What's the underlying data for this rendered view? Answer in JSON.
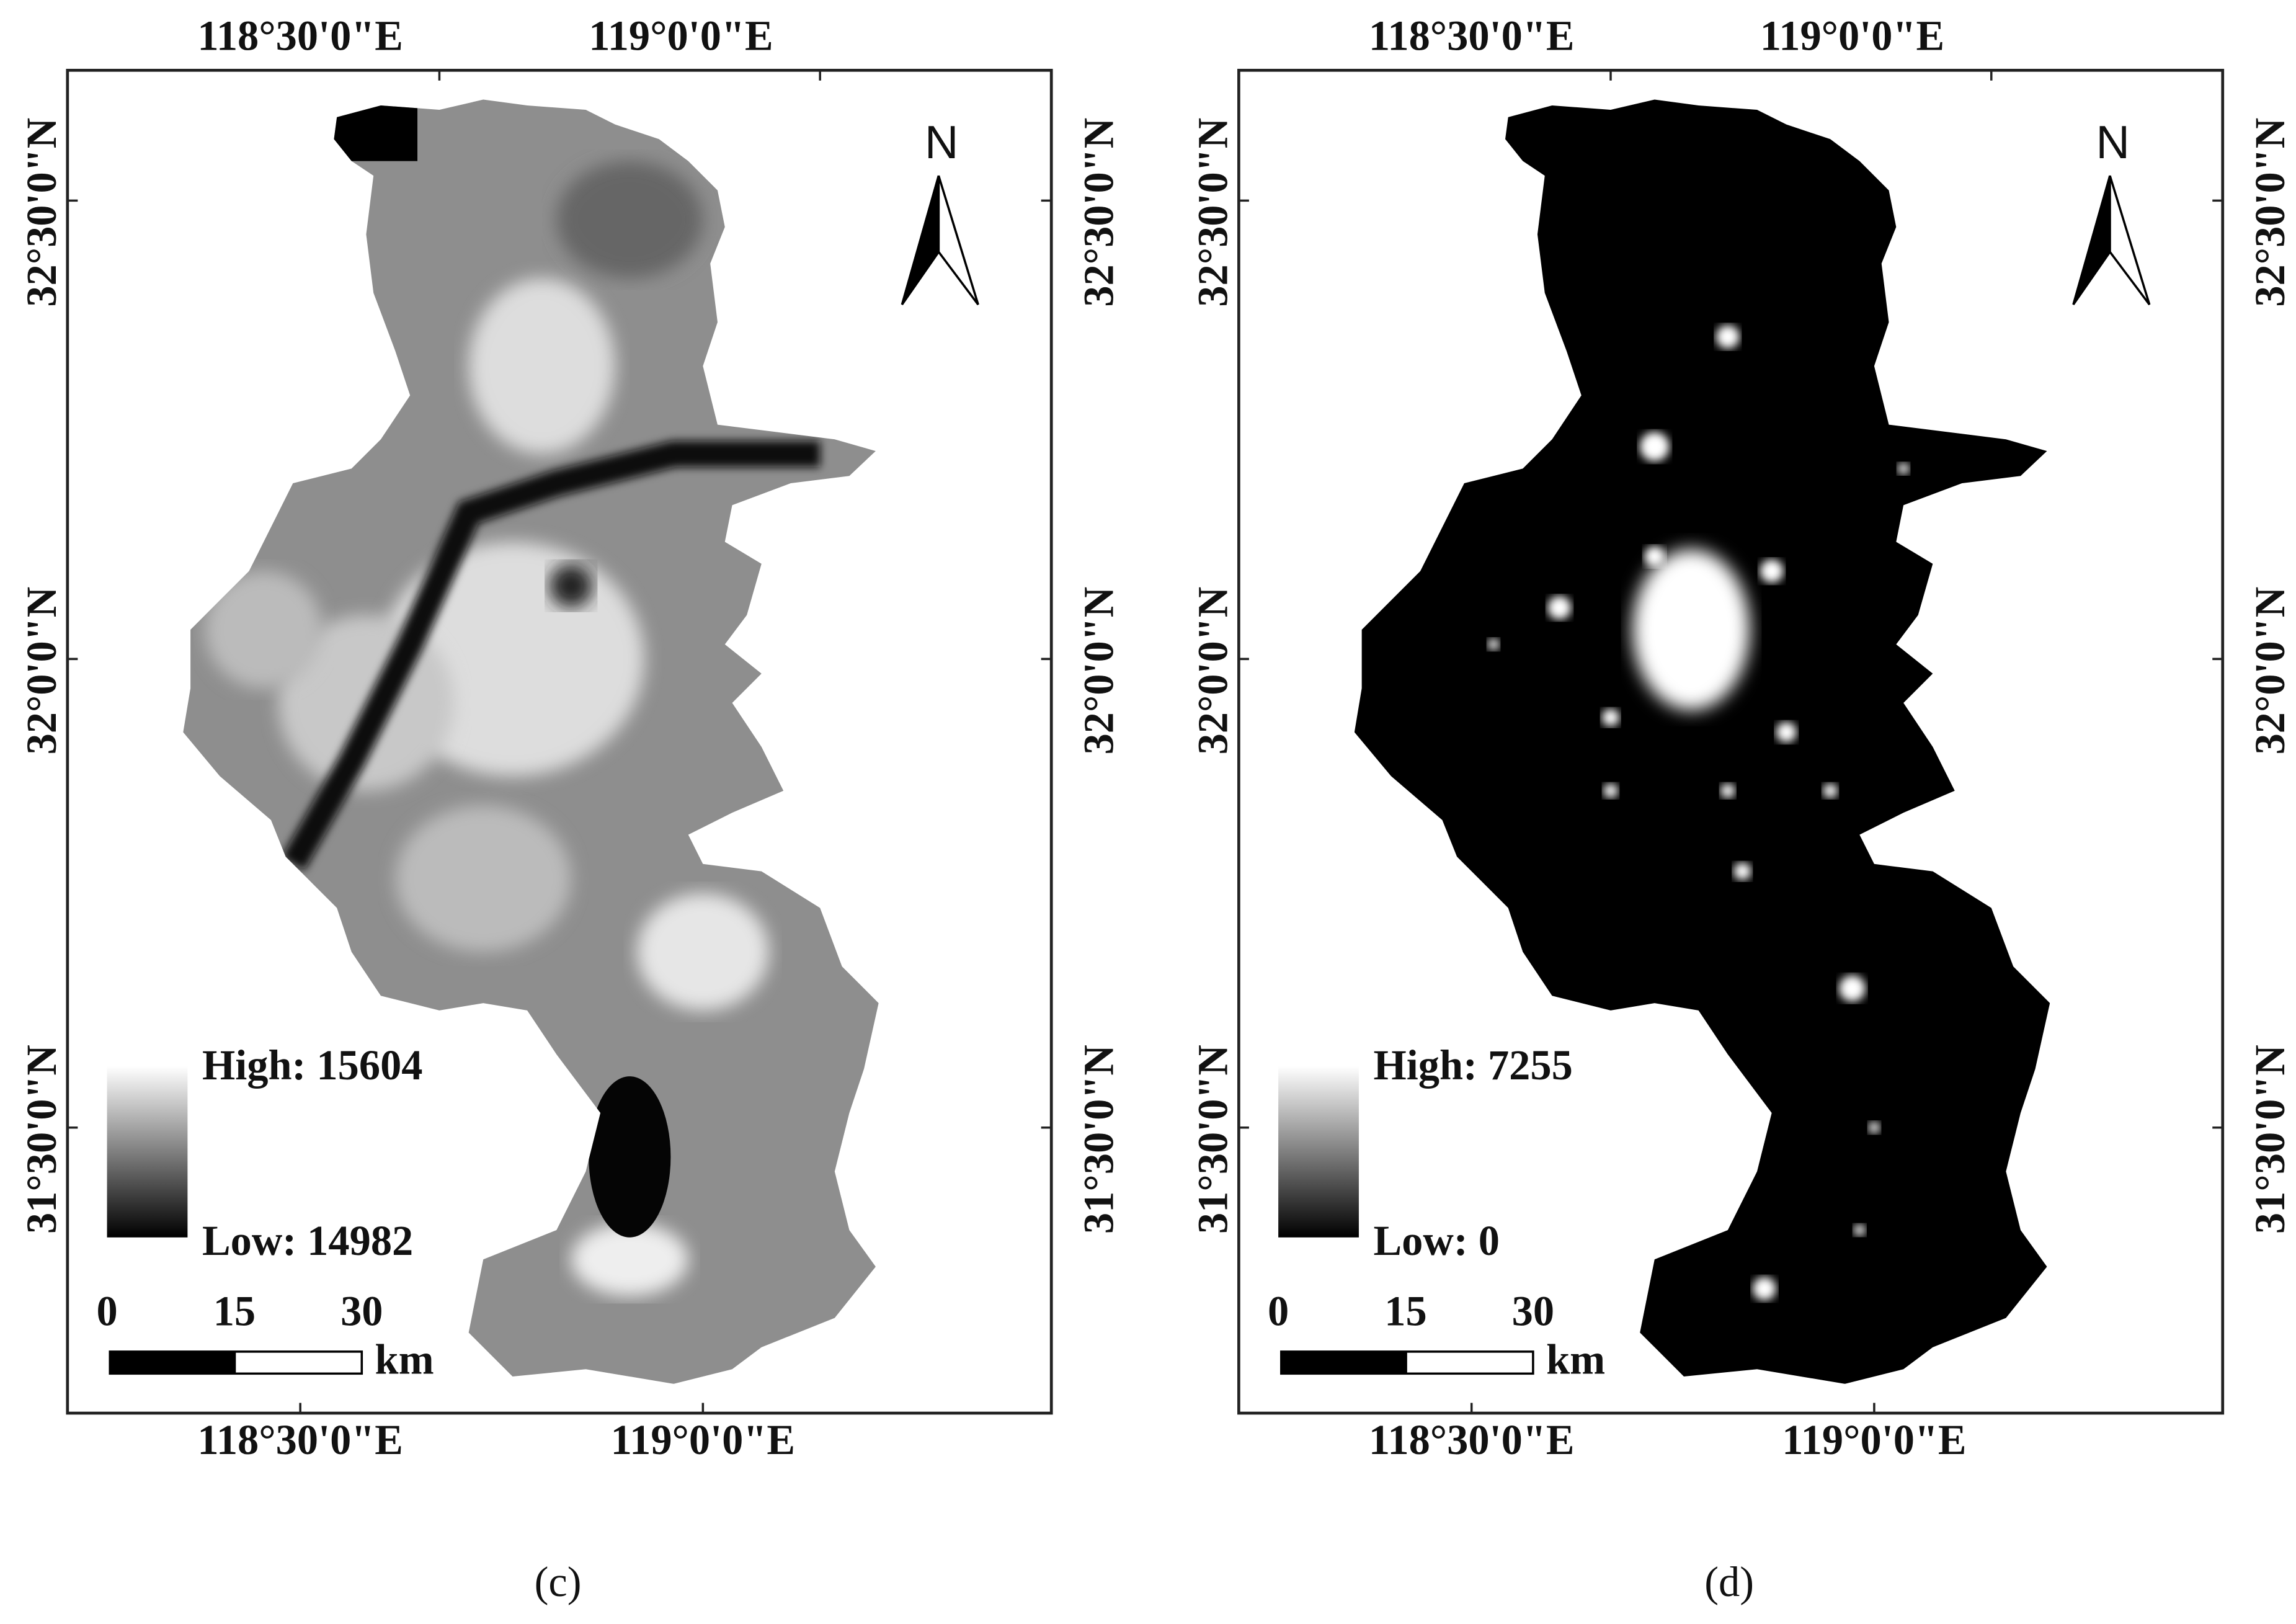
{
  "panels": [
    {
      "caption": "(c)",
      "x_labels_top": [
        "118°30'0\"E",
        "119°0'0\"E"
      ],
      "x_labels_bottom": [
        "118°30'0\"E",
        "119°0'0\"E"
      ],
      "y_labels_left": [
        "32°30'0\"N",
        "32°0'0\"N",
        "31°30'0\"N"
      ],
      "y_labels_right": [
        "32°30'0\"N",
        "32°0'0\"N",
        "31°30'0\"N"
      ],
      "north": "N",
      "legend": {
        "high": "High: 15604",
        "low": "Low: 14982"
      },
      "scale": {
        "ticks": [
          "0",
          "15",
          "30"
        ],
        "unit": "km"
      }
    },
    {
      "caption": "(d)",
      "x_labels_top": [
        "118°30'0\"E",
        "119°0'0\"E"
      ],
      "x_labels_bottom": [
        "118°30'0\"E",
        "119°0'0\"E"
      ],
      "y_labels_left": [
        "32°30'0\"N",
        "32°0'0\"N",
        "31°30'0\"N"
      ],
      "y_labels_right": [
        "32°30'0\"N",
        "32°0'0\"N",
        "31°30'0\"N"
      ],
      "north": "N",
      "legend": {
        "high": "High: 7255",
        "low": "Low: 0"
      },
      "scale": {
        "ticks": [
          "0",
          "15",
          "30"
        ],
        "unit": "km"
      }
    }
  ]
}
